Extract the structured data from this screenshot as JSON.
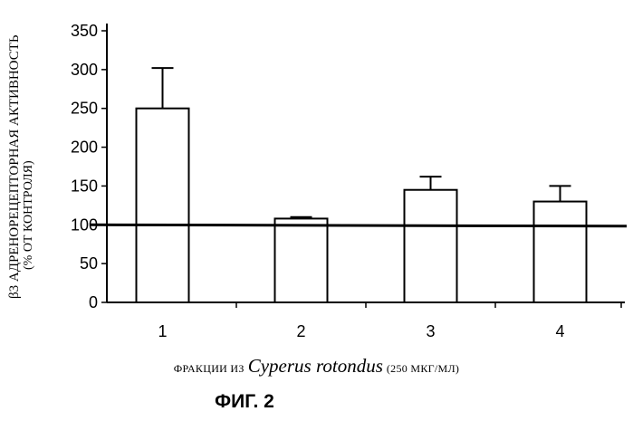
{
  "chart_data": {
    "type": "bar",
    "categories": [
      "1",
      "2",
      "3",
      "4"
    ],
    "values": [
      250,
      108,
      145,
      130
    ],
    "error": [
      52,
      2,
      17,
      20
    ],
    "reference_line": 100,
    "ylim": [
      0,
      350
    ],
    "yticks": [
      "0",
      "50",
      "100",
      "150",
      "200",
      "250",
      "300",
      "350"
    ],
    "ylabel_main": "β3 АДРЕНОРЕЦЕПТОРНАЯ АКТИВНОСТЬ",
    "ylabel_sub": "(% ОТ КОНТРОЛЯ)",
    "xlabel_prefix": "ФРАКЦИИ ИЗ",
    "xlabel_species": "Cyperus rotondus",
    "xlabel_suffix": "(250 МКГ/МЛ)",
    "grid": false,
    "legend": "none"
  },
  "figure_label": "ФИГ. 2"
}
